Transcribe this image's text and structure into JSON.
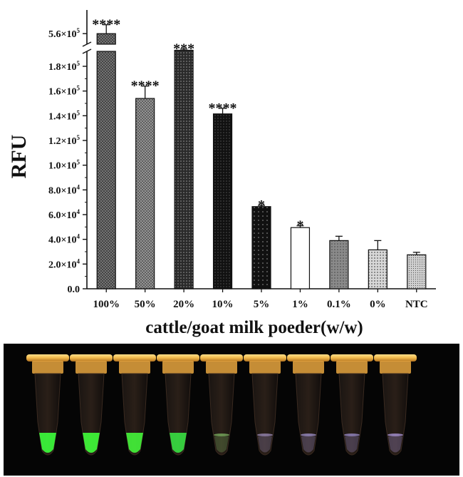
{
  "chart_data": {
    "type": "bar",
    "title": "",
    "xlabel": "cattle/goat milk poeder(w/w)",
    "ylabel": "RFU",
    "categories": [
      "100%",
      "50%",
      "20%",
      "10%",
      "5%",
      "1%",
      "0.1%",
      "0%",
      "NTC"
    ],
    "values": [
      560000,
      154000,
      193000,
      141500,
      66500,
      49500,
      39000,
      31500,
      27500
    ],
    "errors": [
      3000,
      10000,
      1000,
      4500,
      1000,
      1500,
      3500,
      7500,
      2000
    ],
    "significance": [
      "****",
      "****",
      "***",
      "****",
      "*",
      "*",
      "",
      "",
      ""
    ],
    "bar_styles": [
      "dark-crosshatch",
      "medium-crosshatch",
      "medium-dots",
      "black-dots",
      "black-sparse-dots",
      "white",
      "gray-dots",
      "lightgray-dots",
      "lightgray-fine-dots"
    ],
    "ylim": [
      0,
      200000
    ],
    "axis_break": true,
    "upper_ylim": [
      555000,
      567000
    ],
    "yticks": [
      {
        "value": 0,
        "label": "0.0"
      },
      {
        "value": 20000,
        "base": "2.0×10",
        "exp": "4"
      },
      {
        "value": 40000,
        "base": "4.0×10",
        "exp": "4"
      },
      {
        "value": 60000,
        "base": "6.0×10",
        "exp": "4"
      },
      {
        "value": 80000,
        "base": "8.0×10",
        "exp": "4"
      },
      {
        "value": 100000,
        "base": "1.0×10",
        "exp": "5"
      },
      {
        "value": 120000,
        "base": "1.2×10",
        "exp": "5"
      },
      {
        "value": 140000,
        "base": "1.4×10",
        "exp": "5"
      },
      {
        "value": 160000,
        "base": "1.6×10",
        "exp": "5"
      },
      {
        "value": 180000,
        "base": "1.8×10",
        "exp": "5"
      }
    ],
    "upper_tick": {
      "value": 560000,
      "base": "5.6×10",
      "exp": "5"
    },
    "grid": false
  },
  "photo": {
    "tube_count": 9,
    "background": "#050505",
    "cap_color": "#f0b84a",
    "fluorescence": [
      "#3cff3c",
      "#40ff3a",
      "#44f53a",
      "#38e042",
      "#6f9a55",
      "#8a7aa0",
      "#8d7fb0",
      "#8a7cb0",
      "#9a86c0"
    ]
  }
}
